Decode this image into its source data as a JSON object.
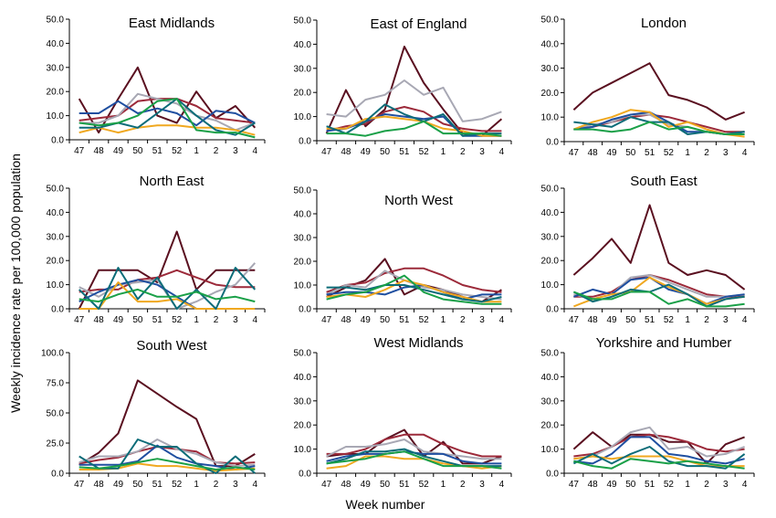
{
  "ylabel": "Weekly incidence rate per 100,000 population",
  "xlabel": "Week number",
  "colors": [
    "#5a1020",
    "#9c2a3a",
    "#a8a8b4",
    "#1f4fa0",
    "#f0a820",
    "#0c6c78",
    "#1aa048"
  ],
  "chart_data": [
    {
      "type": "line",
      "title": "East Midlands",
      "categories": [
        "47",
        "48",
        "49",
        "50",
        "51",
        "52",
        "1",
        "2",
        "3",
        "4"
      ],
      "ylim": [
        0,
        50
      ],
      "ytick_labels": [
        "0.0",
        "10.0",
        "20.0",
        "30.0",
        "40.0",
        "50.0"
      ],
      "series": [
        {
          "values": [
            17,
            3,
            17,
            30,
            10,
            7,
            20,
            9,
            14,
            5
          ]
        },
        {
          "values": [
            8,
            9,
            10,
            16,
            17,
            17,
            14,
            9,
            8,
            7
          ]
        },
        {
          "values": [
            7,
            7,
            10,
            19,
            17,
            15,
            10,
            8,
            4,
            7
          ]
        },
        {
          "values": [
            11,
            11,
            16,
            11,
            13,
            11,
            6,
            12,
            11,
            7
          ]
        },
        {
          "values": [
            3,
            5,
            3,
            5,
            6,
            6,
            5,
            5,
            4,
            2
          ]
        },
        {
          "values": [
            5,
            5,
            7,
            5,
            11,
            17,
            10,
            4,
            2,
            7
          ]
        },
        {
          "values": [
            7,
            6,
            7,
            10,
            16,
            17,
            4,
            3,
            3,
            1
          ]
        }
      ]
    },
    {
      "type": "line",
      "title": "East of England",
      "categories": [
        "47",
        "48",
        "49",
        "50",
        "51",
        "52",
        "1",
        "2",
        "3",
        "4"
      ],
      "ylim": [
        0,
        50
      ],
      "ytick_labels": [
        "0.0",
        "10.0",
        "20.0",
        "30.0",
        "40.0",
        "50.0"
      ],
      "series": [
        {
          "values": [
            3,
            21,
            6,
            13,
            39,
            24,
            13,
            3,
            2,
            9
          ]
        },
        {
          "values": [
            4,
            6,
            7,
            12,
            14,
            12,
            7,
            5,
            4,
            4
          ]
        },
        {
          "values": [
            11,
            10,
            17,
            19,
            25,
            19,
            22,
            8,
            9,
            12
          ]
        },
        {
          "values": [
            4,
            5,
            8,
            11,
            10,
            9,
            10,
            2,
            2,
            2
          ]
        },
        {
          "values": [
            5,
            5,
            9,
            10,
            9,
            8,
            5,
            4,
            2,
            2
          ]
        },
        {
          "values": [
            6,
            3,
            8,
            15,
            11,
            8,
            11,
            2,
            3,
            3
          ]
        },
        {
          "values": [
            3,
            3,
            2,
            4,
            5,
            8,
            3,
            3,
            3,
            2
          ]
        }
      ]
    },
    {
      "type": "line",
      "title": "London",
      "categories": [
        "47",
        "48",
        "49",
        "50",
        "51",
        "52",
        "1",
        "2",
        "3",
        "4"
      ],
      "ylim": [
        0,
        50
      ],
      "ytick_labels": [
        "0.0",
        "10.0",
        "20.0",
        "30.0",
        "40.0",
        "50.0"
      ],
      "series": [
        {
          "values": [
            13,
            20,
            24,
            28,
            32,
            19,
            17,
            14,
            9,
            12
          ]
        },
        {
          "values": [
            5,
            6,
            8,
            10,
            11,
            10,
            8,
            6,
            4,
            4
          ]
        },
        {
          "values": [
            5,
            7,
            8,
            11,
            11,
            7,
            6,
            4,
            3,
            4
          ]
        },
        {
          "values": [
            5,
            6,
            9,
            11,
            12,
            8,
            4,
            4,
            3,
            4
          ]
        },
        {
          "values": [
            5,
            8,
            10,
            13,
            12,
            6,
            8,
            5,
            3,
            2
          ]
        },
        {
          "values": [
            8,
            7,
            6,
            10,
            8,
            8,
            3,
            4,
            3,
            4
          ]
        },
        {
          "values": [
            5,
            5,
            4,
            5,
            8,
            5,
            6,
            4,
            3,
            3
          ]
        }
      ]
    },
    {
      "type": "line",
      "title": "North East",
      "categories": [
        "47",
        "48",
        "49",
        "50",
        "51",
        "52",
        "1",
        "2",
        "3",
        "4"
      ],
      "ylim": [
        0,
        50
      ],
      "ytick_labels": [
        "0.0",
        "10.0",
        "20.0",
        "30.0",
        "40.0",
        "50.0"
      ],
      "series": [
        {
          "values": [
            0,
            16,
            16,
            16,
            11,
            32,
            8,
            16,
            16,
            16
          ]
        },
        {
          "values": [
            7,
            8,
            8,
            12,
            13,
            16,
            13,
            10,
            9,
            9
          ]
        },
        {
          "values": [
            9,
            5,
            10,
            11,
            12,
            0,
            3,
            7,
            10,
            19
          ]
        },
        {
          "values": [
            3,
            7,
            10,
            12,
            10,
            5,
            0,
            0,
            0,
            0
          ]
        },
        {
          "values": [
            0,
            0,
            11,
            3,
            3,
            4,
            0,
            0,
            0,
            0
          ]
        },
        {
          "values": [
            8,
            0,
            17,
            4,
            13,
            0,
            8,
            0,
            17,
            8
          ]
        },
        {
          "values": [
            4,
            3,
            6,
            8,
            5,
            5,
            7,
            4,
            5,
            3
          ]
        }
      ]
    },
    {
      "type": "line",
      "title": "North West",
      "categories": [
        "47",
        "48",
        "49",
        "50",
        "51",
        "52",
        "1",
        "2",
        "3",
        "4"
      ],
      "ylim": [
        0,
        50
      ],
      "ytick_labels": [
        "0.0",
        "10.0",
        "20.0",
        "30.0",
        "40.0",
        "50.0"
      ],
      "series": [
        {
          "values": [
            5,
            9,
            12,
            21,
            6,
            10,
            8,
            5,
            3,
            8
          ]
        },
        {
          "values": [
            7,
            10,
            11,
            15,
            17,
            17,
            14,
            10,
            8,
            7
          ]
        },
        {
          "values": [
            6,
            10,
            9,
            16,
            12,
            9,
            8,
            6,
            5,
            4
          ]
        },
        {
          "values": [
            6,
            7,
            7,
            6,
            9,
            10,
            7,
            4,
            6,
            6
          ]
        },
        {
          "values": [
            5,
            6,
            5,
            8,
            12,
            10,
            7,
            5,
            3,
            3
          ]
        },
        {
          "values": [
            9,
            9,
            8,
            10,
            10,
            8,
            6,
            4,
            3,
            5
          ]
        },
        {
          "values": [
            4,
            6,
            7,
            10,
            14,
            7,
            4,
            3,
            2,
            2
          ]
        }
      ]
    },
    {
      "type": "line",
      "title": "South East",
      "categories": [
        "47",
        "48",
        "49",
        "50",
        "51",
        "52",
        "1",
        "2",
        "3",
        "4"
      ],
      "ylim": [
        0,
        50
      ],
      "ytick_labels": [
        "0.0",
        "10.0",
        "20.0",
        "30.0",
        "40.0",
        "50.0"
      ],
      "series": [
        {
          "values": [
            14,
            21,
            29,
            19,
            43,
            19,
            14,
            16,
            14,
            8
          ]
        },
        {
          "values": [
            5,
            5,
            7,
            12,
            14,
            12,
            9,
            6,
            5,
            5
          ]
        },
        {
          "values": [
            6,
            4,
            6,
            13,
            14,
            11,
            8,
            5,
            5,
            6
          ]
        },
        {
          "values": [
            5,
            8,
            6,
            12,
            13,
            8,
            6,
            2,
            5,
            6
          ]
        },
        {
          "values": [
            1,
            4,
            6,
            7,
            13,
            9,
            6,
            2,
            4,
            5
          ]
        },
        {
          "values": [
            7,
            3,
            5,
            8,
            7,
            10,
            6,
            1,
            4,
            5
          ]
        },
        {
          "values": [
            7,
            4,
            4,
            7,
            7,
            2,
            4,
            1,
            1,
            2
          ]
        }
      ]
    },
    {
      "type": "line",
      "title": "South West",
      "categories": [
        "47",
        "48",
        "49",
        "50",
        "51",
        "52",
        "1",
        "2",
        "3",
        "4"
      ],
      "ylim": [
        0,
        100
      ],
      "ytick_labels": [
        "0.0",
        "25.0",
        "50.0",
        "75.0",
        "100.0"
      ],
      "series": [
        {
          "values": [
            7,
            17,
            33,
            77,
            66,
            55,
            45,
            6,
            6,
            16
          ]
        },
        {
          "values": [
            8,
            11,
            13,
            18,
            22,
            20,
            18,
            9,
            8,
            9
          ]
        },
        {
          "values": [
            9,
            14,
            14,
            18,
            28,
            20,
            16,
            9,
            6,
            7
          ]
        },
        {
          "values": [
            7,
            7,
            7,
            10,
            23,
            13,
            8,
            6,
            3,
            6
          ]
        },
        {
          "values": [
            3,
            3,
            4,
            8,
            6,
            6,
            4,
            2,
            3,
            4
          ]
        },
        {
          "values": [
            14,
            4,
            4,
            28,
            22,
            22,
            8,
            0,
            14,
            0
          ]
        },
        {
          "values": [
            5,
            4,
            6,
            9,
            12,
            9,
            6,
            3,
            5,
            3
          ]
        }
      ]
    },
    {
      "type": "line",
      "title": "West Midlands",
      "categories": [
        "47",
        "48",
        "49",
        "50",
        "51",
        "52",
        "1",
        "2",
        "3",
        "4"
      ],
      "ylim": [
        0,
        50
      ],
      "ytick_labels": [
        "0.0",
        "10.0",
        "20.0",
        "30.0",
        "40.0",
        "50.0"
      ],
      "series": [
        {
          "values": [
            7,
            8,
            8,
            14,
            18,
            7,
            13,
            4,
            4,
            7
          ]
        },
        {
          "values": [
            8,
            8,
            10,
            14,
            16,
            16,
            12,
            9,
            7,
            7
          ]
        },
        {
          "values": [
            7,
            11,
            11,
            12,
            14,
            9,
            8,
            7,
            6,
            6
          ]
        },
        {
          "values": [
            5,
            7,
            8,
            8,
            9,
            8,
            8,
            5,
            4,
            4
          ]
        },
        {
          "values": [
            2,
            3,
            7,
            7,
            6,
            6,
            4,
            3,
            2,
            3
          ]
        },
        {
          "values": [
            4,
            6,
            9,
            9,
            10,
            7,
            5,
            3,
            3,
            3
          ]
        },
        {
          "values": [
            4,
            5,
            6,
            8,
            9,
            6,
            3,
            3,
            3,
            2
          ]
        }
      ]
    },
    {
      "type": "line",
      "title": "Yorkshire and Humber",
      "categories": [
        "47",
        "48",
        "49",
        "50",
        "51",
        "52",
        "1",
        "2",
        "3",
        "4"
      ],
      "ylim": [
        0,
        50
      ],
      "ytick_labels": [
        "0.0",
        "10.0",
        "20.0",
        "30.0",
        "40.0",
        "50.0"
      ],
      "series": [
        {
          "values": [
            10,
            17,
            11,
            16,
            16,
            13,
            13,
            4,
            12,
            15
          ]
        },
        {
          "values": [
            7,
            8,
            11,
            15,
            16,
            15,
            13,
            10,
            9,
            10
          ]
        },
        {
          "values": [
            6,
            7,
            11,
            17,
            19,
            10,
            11,
            7,
            8,
            11
          ]
        },
        {
          "values": [
            5,
            4,
            8,
            15,
            15,
            8,
            7,
            5,
            4,
            6
          ]
        },
        {
          "values": [
            6,
            7,
            6,
            7,
            7,
            7,
            5,
            3,
            3,
            3
          ]
        },
        {
          "values": [
            4,
            8,
            4,
            8,
            11,
            5,
            3,
            3,
            2,
            8
          ]
        },
        {
          "values": [
            5,
            3,
            2,
            6,
            5,
            4,
            5,
            4,
            3,
            2
          ]
        }
      ]
    }
  ]
}
